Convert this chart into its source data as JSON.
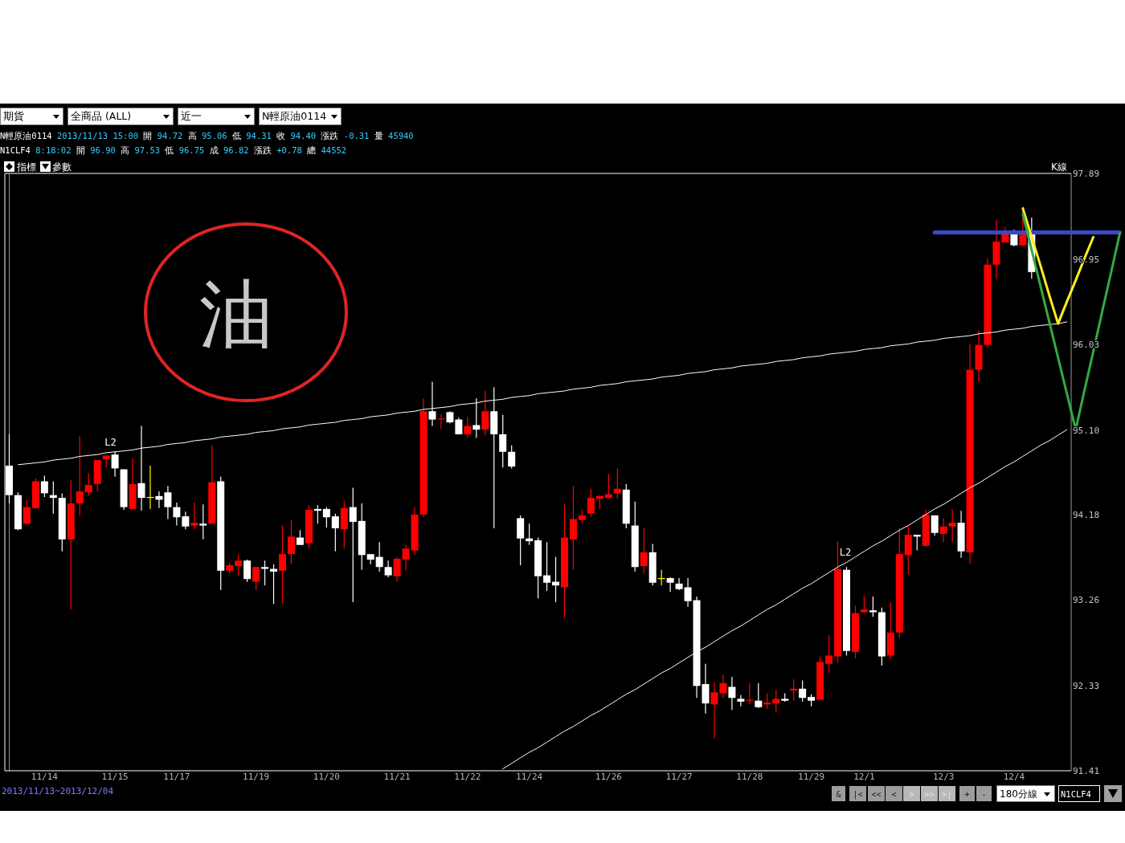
{
  "chart_data": {
    "type": "candlestick",
    "categories": [
      null,
      null,
      null,
      null,
      "11/14",
      null,
      null,
      null,
      null,
      null,
      null,
      null,
      "11/15",
      null,
      null,
      null,
      null,
      null,
      null,
      "11/17",
      null,
      null,
      null,
      null,
      null,
      null,
      null,
      null,
      "11/19",
      null,
      null,
      null,
      null,
      null,
      null,
      null,
      "11/20",
      null,
      null,
      null,
      null,
      null,
      null,
      null,
      "11/21",
      null,
      null,
      null,
      null,
      null,
      null,
      null,
      "11/22",
      null,
      null,
      null,
      null,
      null,
      null,
      "11/24",
      null,
      null,
      null,
      null,
      null,
      null,
      null,
      null,
      "11/26",
      null,
      null,
      null,
      null,
      null,
      null,
      null,
      "11/27",
      null,
      null,
      null,
      null,
      null,
      null,
      null,
      "11/28",
      null,
      null,
      null,
      null,
      null,
      null,
      "11/29",
      null,
      null,
      null,
      null,
      null,
      "12/1",
      null,
      null,
      null,
      null,
      null,
      null,
      null,
      null,
      "12/3",
      null,
      null,
      null,
      null,
      null,
      null,
      null,
      "12/4",
      null,
      null,
      null,
      null,
      null,
      null,
      null,
      null,
      null,
      null,
      null,
      null
    ],
    "ohlc": [
      [
        94.72,
        95.06,
        94.31,
        94.4
      ],
      [
        94.4,
        94.43,
        94.02,
        94.03
      ],
      [
        94.09,
        94.35,
        94.08,
        94.27
      ],
      [
        94.26,
        94.58,
        94.25,
        94.55
      ],
      [
        94.55,
        94.61,
        94.38,
        94.42
      ],
      [
        94.4,
        94.55,
        94.2,
        94.37
      ],
      [
        94.37,
        94.42,
        93.79,
        93.92
      ],
      [
        93.92,
        94.56,
        93.16,
        94.31
      ],
      [
        94.31,
        95.04,
        94.18,
        94.44
      ],
      [
        94.43,
        94.64,
        94.39,
        94.51
      ],
      [
        94.52,
        94.78,
        94.44,
        94.78
      ],
      [
        94.79,
        94.83,
        94.7,
        94.83
      ],
      [
        94.84,
        94.87,
        94.6,
        94.69
      ],
      [
        94.68,
        94.68,
        94.24,
        94.27
      ],
      [
        94.25,
        94.8,
        94.25,
        94.52
      ],
      [
        94.53,
        95.15,
        94.23,
        94.37
      ],
      [
        94.38,
        94.72,
        94.25,
        94.38
      ],
      [
        94.39,
        94.44,
        94.26,
        94.35
      ],
      [
        94.43,
        94.5,
        94.14,
        94.27
      ],
      [
        94.27,
        94.32,
        94.07,
        94.16
      ],
      [
        94.17,
        94.22,
        94.03,
        94.06
      ],
      [
        94.07,
        94.32,
        94.03,
        94.1
      ],
      [
        94.09,
        94.3,
        93.92,
        94.07
      ],
      [
        94.09,
        94.94,
        94.09,
        94.54
      ],
      [
        94.55,
        94.6,
        93.37,
        93.58
      ],
      [
        93.58,
        93.67,
        93.55,
        93.64
      ],
      [
        93.63,
        93.76,
        93.53,
        93.69
      ],
      [
        93.69,
        93.7,
        93.46,
        93.49
      ],
      [
        93.46,
        93.62,
        93.37,
        93.62
      ],
      [
        93.62,
        93.69,
        93.42,
        93.6
      ],
      [
        93.6,
        93.65,
        93.22,
        93.57
      ],
      [
        93.58,
        94.07,
        93.22,
        93.76
      ],
      [
        93.76,
        94.13,
        93.65,
        93.95
      ],
      [
        93.94,
        94.02,
        93.86,
        93.86
      ],
      [
        93.88,
        94.29,
        93.82,
        94.24
      ],
      [
        94.25,
        94.29,
        94.09,
        94.23
      ],
      [
        94.25,
        94.27,
        94.05,
        94.16
      ],
      [
        94.17,
        94.2,
        93.79,
        94.04
      ],
      [
        94.03,
        94.34,
        93.82,
        94.26
      ],
      [
        94.27,
        94.48,
        93.24,
        94.11
      ],
      [
        94.12,
        94.31,
        93.59,
        93.75
      ],
      [
        93.76,
        93.76,
        93.65,
        93.7
      ],
      [
        93.73,
        93.89,
        93.57,
        93.62
      ],
      [
        93.62,
        93.69,
        93.51,
        93.53
      ],
      [
        93.52,
        93.73,
        93.46,
        93.71
      ],
      [
        93.7,
        93.86,
        93.58,
        93.82
      ],
      [
        93.8,
        94.27,
        93.75,
        94.19
      ],
      [
        94.19,
        95.45,
        94.16,
        95.31
      ],
      [
        95.31,
        95.63,
        95.15,
        95.22
      ],
      [
        95.22,
        95.28,
        95.12,
        95.23
      ],
      [
        95.3,
        95.31,
        95.18,
        95.19
      ],
      [
        95.22,
        95.24,
        95.06,
        95.06
      ],
      [
        95.06,
        95.25,
        95.02,
        95.15
      ],
      [
        95.16,
        95.45,
        95.02,
        95.11
      ],
      [
        95.11,
        95.53,
        95.05,
        95.31
      ],
      [
        95.31,
        95.57,
        94.04,
        95.06
      ],
      [
        95.06,
        95.27,
        94.7,
        94.87
      ],
      [
        94.87,
        94.94,
        94.69,
        94.71
      ],
      [
        94.15,
        94.18,
        93.64,
        93.93
      ],
      [
        93.93,
        94.09,
        93.86,
        93.9
      ],
      [
        93.91,
        93.94,
        93.28,
        93.52
      ],
      [
        93.53,
        93.89,
        93.36,
        93.45
      ],
      [
        93.46,
        93.73,
        93.24,
        93.42
      ],
      [
        93.4,
        94.3,
        93.07,
        93.94
      ],
      [
        93.92,
        94.5,
        93.59,
        94.14
      ],
      [
        94.13,
        94.24,
        94.09,
        94.18
      ],
      [
        94.2,
        94.47,
        94.16,
        94.37
      ],
      [
        94.36,
        94.4,
        94.25,
        94.39
      ],
      [
        94.37,
        94.63,
        94.36,
        94.41
      ],
      [
        94.42,
        94.69,
        94.36,
        94.47
      ],
      [
        94.46,
        94.52,
        94.04,
        94.09
      ],
      [
        94.07,
        94.33,
        93.57,
        93.62
      ],
      [
        93.63,
        94.04,
        93.55,
        93.78
      ],
      [
        93.78,
        93.87,
        93.42,
        93.45
      ],
      [
        93.5,
        93.59,
        93.42,
        93.5
      ],
      [
        93.5,
        93.51,
        93.35,
        93.45
      ],
      [
        93.44,
        93.5,
        93.37,
        93.38
      ],
      [
        93.4,
        93.5,
        93.19,
        93.25
      ],
      [
        93.26,
        93.3,
        92.2,
        92.33
      ],
      [
        92.35,
        92.57,
        92.03,
        92.14
      ],
      [
        92.13,
        92.37,
        91.76,
        92.26
      ],
      [
        92.25,
        92.45,
        92.2,
        92.36
      ],
      [
        92.32,
        92.43,
        92.07,
        92.2
      ],
      [
        92.19,
        92.23,
        92.11,
        92.16
      ],
      [
        92.17,
        92.36,
        92.13,
        92.18
      ],
      [
        92.17,
        92.36,
        92.09,
        92.1
      ],
      [
        92.13,
        92.25,
        92.08,
        92.15
      ],
      [
        92.14,
        92.29,
        92.04,
        92.19
      ],
      [
        92.19,
        92.25,
        92.16,
        92.17
      ],
      [
        92.28,
        92.4,
        92.17,
        92.3
      ],
      [
        92.3,
        92.39,
        92.16,
        92.2
      ],
      [
        92.21,
        92.24,
        92.11,
        92.17
      ],
      [
        92.18,
        92.65,
        92.18,
        92.59
      ],
      [
        92.57,
        92.88,
        92.47,
        92.66
      ],
      [
        92.65,
        93.9,
        92.58,
        93.6
      ],
      [
        93.59,
        93.62,
        92.66,
        92.71
      ],
      [
        92.7,
        93.2,
        92.63,
        93.12
      ],
      [
        93.13,
        93.31,
        93.12,
        93.16
      ],
      [
        93.15,
        93.3,
        93.08,
        93.13
      ],
      [
        93.13,
        93.18,
        92.55,
        92.65
      ],
      [
        92.66,
        93.24,
        92.62,
        92.91
      ],
      [
        92.91,
        94.04,
        92.85,
        93.76
      ],
      [
        93.75,
        94.07,
        93.54,
        93.97
      ],
      [
        93.97,
        93.97,
        93.8,
        93.95
      ],
      [
        93.85,
        94.24,
        93.85,
        94.19
      ],
      [
        94.18,
        94.18,
        93.96,
        93.99
      ],
      [
        93.98,
        94.15,
        93.89,
        94.06
      ],
      [
        94.06,
        94.25,
        93.89,
        94.1
      ],
      [
        94.1,
        94.23,
        93.72,
        93.79
      ],
      [
        93.78,
        96.04,
        93.66,
        95.76
      ],
      [
        95.76,
        96.19,
        95.63,
        96.03
      ],
      [
        96.03,
        96.97,
        96.0,
        96.9
      ],
      [
        96.9,
        97.39,
        96.74,
        97.15
      ],
      [
        97.14,
        97.31,
        97.14,
        97.24
      ],
      [
        97.24,
        97.28,
        97.1,
        97.11
      ],
      [
        97.11,
        97.53,
        97.1,
        97.24
      ],
      [
        97.24,
        97.41,
        96.75,
        96.82
      ],
      null,
      null,
      null,
      null,
      null,
      null,
      null,
      null,
      null,
      null
    ],
    "colors": [
      "#ffffff",
      "#ffffff",
      "#ff0000",
      "#ff0000",
      "#ffffff",
      "#ffffff",
      "#ffffff",
      "#ff0000",
      "#ff0000",
      "#ff0000",
      "#ff0000",
      "#ff0000",
      "#ffffff",
      "#ffffff",
      "#ff0000",
      "#ffffff",
      "#ffff00",
      "#ffffff",
      "#ffffff",
      "#ffffff",
      "#ffffff",
      "#ff0000",
      "#ffffff",
      "#ff0000",
      "#ffffff",
      "#ff0000",
      "#ff0000",
      "#ffffff",
      "#ff0000",
      "#ffffff",
      "#ffffff",
      "#ff0000",
      "#ff0000",
      "#ffffff",
      "#ff0000",
      "#ffffff",
      "#ffffff",
      "#ffffff",
      "#ff0000",
      "#ffffff",
      "#ffffff",
      "#ffffff",
      "#ffffff",
      "#ffffff",
      "#ff0000",
      "#ff0000",
      "#ff0000",
      "#ff0000",
      "#ffffff",
      "#ff0000",
      "#ffffff",
      "#ffffff",
      "#ff0000",
      "#ffffff",
      "#ff0000",
      "#ffffff",
      "#ffffff",
      "#ffffff",
      "#ffffff",
      "#ffffff",
      "#ffffff",
      "#ffffff",
      "#ffffff",
      "#ff0000",
      "#ff0000",
      "#ff0000",
      "#ff0000",
      "#ff0000",
      "#ff0000",
      "#ff0000",
      "#ffffff",
      "#ffffff",
      "#ff0000",
      "#ffffff",
      "#ffff00",
      "#ffffff",
      "#ffffff",
      "#ffffff",
      "#ffffff",
      "#ffffff",
      "#ff0000",
      "#ff0000",
      "#ffffff",
      "#ffffff",
      "#ff0000",
      "#ffffff",
      "#ff0000",
      "#ff0000",
      "#ffffff",
      "#ff0000",
      "#ffffff",
      "#ffffff",
      "#ff0000",
      "#ff0000",
      "#ff0000",
      "#ffffff",
      "#ff0000",
      "#ff0000",
      "#ffffff",
      "#ffffff",
      "#ff0000",
      "#ff0000",
      "#ff0000",
      "#ffffff",
      "#ff0000",
      "#ffffff",
      "#ff0000",
      "#ff0000",
      "#ffffff",
      "#ff0000",
      "#ff0000",
      "#ff0000",
      "#ff0000",
      "#ff0000",
      "#ffffff",
      "#ff0000",
      "#ffffff",
      null,
      null,
      null,
      null,
      null,
      null,
      null,
      null,
      null,
      null
    ],
    "series": [
      {
        "type": "line",
        "color": "#ffffff",
        "values": [
          null,
          94.73,
          94.74,
          94.75,
          94.76,
          94.78,
          94.79,
          94.8,
          94.82,
          94.83,
          94.84,
          94.86,
          94.87,
          94.88,
          94.89,
          94.91,
          94.92,
          94.93,
          94.95,
          94.96,
          94.97,
          94.99,
          95.0,
          95.01,
          95.03,
          95.04,
          95.05,
          95.06,
          95.08,
          95.09,
          95.1,
          95.12,
          95.13,
          95.14,
          95.16,
          95.17,
          95.18,
          95.19,
          95.21,
          95.22,
          95.23,
          95.25,
          95.26,
          95.27,
          95.29,
          95.3,
          95.31,
          95.33,
          95.34,
          95.35,
          95.36,
          95.38,
          95.39,
          95.4,
          95.42,
          95.43,
          95.44,
          95.46,
          95.47,
          95.48,
          95.5,
          95.51,
          95.52,
          95.53,
          95.55,
          95.56,
          95.57,
          95.59,
          95.6,
          95.61,
          95.63,
          95.64,
          95.65,
          95.66,
          95.68,
          95.69,
          95.7,
          95.72,
          95.73,
          95.74,
          95.76,
          95.77,
          95.78,
          95.8,
          95.81,
          95.82,
          95.83,
          95.85,
          95.86,
          95.87,
          95.89,
          95.9,
          95.91,
          95.93,
          95.94,
          95.95,
          95.96,
          95.98,
          95.99,
          96.0,
          96.02,
          96.03,
          96.04,
          96.06,
          96.07,
          96.08,
          96.1,
          96.11,
          96.12,
          96.13,
          96.15,
          96.16,
          96.17,
          96.19,
          96.2,
          96.21,
          96.23,
          96.24,
          96.25,
          96.26,
          96.28,
          null,
          null,
          null,
          null,
          null,
          null
        ]
      },
      {
        "type": "line",
        "color": "#ffffff",
        "values": [
          null,
          null,
          null,
          null,
          null,
          null,
          null,
          null,
          null,
          null,
          null,
          null,
          null,
          null,
          null,
          null,
          null,
          null,
          null,
          null,
          null,
          null,
          null,
          null,
          null,
          null,
          null,
          null,
          null,
          null,
          null,
          null,
          null,
          null,
          null,
          null,
          null,
          null,
          null,
          null,
          null,
          null,
          null,
          null,
          null,
          null,
          null,
          null,
          null,
          null,
          null,
          null,
          null,
          null,
          null,
          null,
          91.43,
          91.49,
          91.55,
          91.61,
          91.66,
          91.72,
          91.78,
          91.84,
          91.89,
          91.95,
          92.01,
          92.06,
          92.12,
          92.18,
          92.24,
          92.29,
          92.35,
          92.41,
          92.47,
          92.52,
          92.58,
          92.64,
          92.7,
          92.75,
          92.81,
          92.87,
          92.93,
          92.98,
          93.04,
          93.1,
          93.16,
          93.21,
          93.27,
          93.33,
          93.39,
          93.44,
          93.5,
          93.56,
          93.62,
          93.67,
          93.73,
          93.79,
          93.85,
          93.9,
          93.96,
          94.02,
          94.07,
          94.13,
          94.19,
          94.25,
          94.3,
          94.36,
          94.42,
          94.48,
          94.53,
          94.59,
          94.65,
          94.71,
          94.76,
          94.82,
          94.88,
          94.94,
          94.99,
          95.05,
          95.11,
          null,
          null,
          null,
          null,
          null,
          null
        ]
      },
      {
        "type": "line",
        "color": "#3a48c8",
        "values": [
          null,
          null,
          null,
          null,
          null,
          null,
          null,
          null,
          null,
          null,
          null,
          null,
          null,
          null,
          null,
          null,
          null,
          null,
          null,
          null,
          null,
          null,
          null,
          null,
          null,
          null,
          null,
          null,
          null,
          null,
          null,
          null,
          null,
          null,
          null,
          null,
          null,
          null,
          null,
          null,
          null,
          null,
          null,
          null,
          null,
          null,
          null,
          null,
          null,
          null,
          null,
          null,
          null,
          null,
          null,
          null,
          null,
          null,
          null,
          null,
          null,
          null,
          null,
          null,
          null,
          null,
          null,
          null,
          null,
          null,
          null,
          null,
          null,
          null,
          null,
          null,
          null,
          null,
          null,
          null,
          null,
          null,
          null,
          null,
          null,
          null,
          null,
          null,
          null,
          null,
          null,
          null,
          null,
          null,
          null,
          null,
          null,
          null,
          null,
          null,
          null,
          null,
          null,
          null,
          null,
          97.25,
          97.25,
          97.25,
          97.25,
          97.25,
          97.25,
          97.25,
          97.25,
          97.25,
          97.25,
          97.25,
          97.25,
          97.25,
          97.25,
          97.25,
          97.25,
          97.25,
          97.25,
          97.25,
          97.25,
          97.25,
          97.25
        ]
      },
      {
        "type": "line",
        "color": "#ffee22",
        "values": [
          null,
          null,
          null,
          null,
          null,
          null,
          null,
          null,
          null,
          null,
          null,
          null,
          null,
          null,
          null,
          null,
          null,
          null,
          null,
          null,
          null,
          null,
          null,
          null,
          null,
          null,
          null,
          null,
          null,
          null,
          null,
          null,
          null,
          null,
          null,
          null,
          null,
          null,
          null,
          null,
          null,
          null,
          null,
          null,
          null,
          null,
          null,
          null,
          null,
          null,
          null,
          null,
          null,
          null,
          null,
          null,
          null,
          null,
          null,
          null,
          null,
          null,
          null,
          null,
          null,
          null,
          null,
          null,
          null,
          null,
          null,
          null,
          null,
          null,
          null,
          null,
          null,
          null,
          null,
          null,
          null,
          null,
          null,
          null,
          null,
          null,
          null,
          null,
          null,
          null,
          null,
          null,
          null,
          null,
          null,
          null,
          null,
          null,
          null,
          null,
          null,
          null,
          null,
          null,
          null,
          null,
          null,
          null,
          null,
          null,
          null,
          null,
          null,
          null,
          null,
          97.51,
          97.2,
          96.89,
          96.57,
          96.26,
          96.5,
          96.73,
          96.97,
          97.2,
          null,
          null,
          null
        ]
      },
      {
        "type": "line",
        "color": "#33aa44",
        "values": [
          null,
          null,
          null,
          null,
          null,
          null,
          null,
          null,
          null,
          null,
          null,
          null,
          null,
          null,
          null,
          null,
          null,
          null,
          null,
          null,
          null,
          null,
          null,
          null,
          null,
          null,
          null,
          null,
          null,
          null,
          null,
          null,
          null,
          null,
          null,
          null,
          null,
          null,
          null,
          null,
          null,
          null,
          null,
          null,
          null,
          null,
          null,
          null,
          null,
          null,
          null,
          null,
          null,
          null,
          null,
          null,
          null,
          null,
          null,
          null,
          null,
          null,
          null,
          null,
          null,
          null,
          null,
          null,
          null,
          null,
          null,
          null,
          null,
          null,
          null,
          null,
          null,
          null,
          null,
          null,
          null,
          null,
          null,
          null,
          null,
          null,
          null,
          null,
          null,
          null,
          null,
          null,
          null,
          null,
          null,
          null,
          null,
          null,
          null,
          null,
          null,
          null,
          null,
          null,
          null,
          null,
          null,
          null,
          null,
          null,
          null,
          null,
          null,
          null,
          null,
          97.45,
          97.06,
          96.67,
          96.28,
          95.89,
          95.5,
          95.11,
          95.54,
          95.96,
          96.39,
          96.81,
          97.24
        ]
      }
    ],
    "ylim": [
      91.41,
      97.89
    ],
    "yticks": [
      97.89,
      96.95,
      96.03,
      {
        "value": 95.1,
        "label": "95.10"
      },
      94.18,
      93.26,
      92.33,
      91.41
    ],
    "annotations": [
      "期貨",
      "全商品 (ALL)",
      "近一",
      "N輕原油0114",
      "N輕原油0114 2013/11/13 15:00 開 94.72 高 95.06 低 94.31 收 94.40 漲跌 -0.31 量 45940",
      "N1CLF4 8:18:02 開 96.90 高 97.53 低 96.75 成 96.82 漲跌 +0.78 總 44552",
      "指標",
      "參數",
      "K線",
      "油",
      "L2",
      "L2",
      "2013/11/13~2013/12/04",
      "&",
      "|<",
      "<<",
      "<",
      ">",
      ">>",
      ">|",
      "+",
      "-",
      "180分線",
      "N1CLF4"
    ]
  }
}
